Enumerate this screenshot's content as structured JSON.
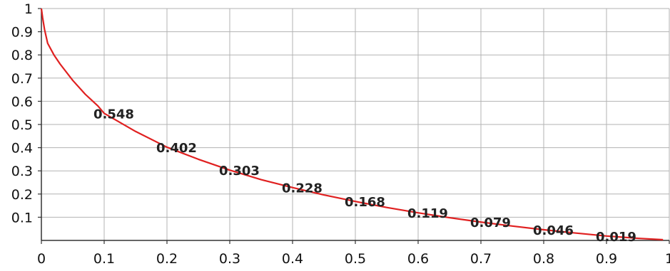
{
  "chart_data": {
    "type": "line",
    "title": "",
    "xlabel": "",
    "ylabel": "",
    "xlim": [
      0,
      1
    ],
    "ylim": [
      0,
      1
    ],
    "grid": true,
    "x_ticks": [
      {
        "value": 0,
        "label": "0"
      },
      {
        "value": 0.1,
        "label": "0.1"
      },
      {
        "value": 0.2,
        "label": "0.2"
      },
      {
        "value": 0.3,
        "label": "0.3"
      },
      {
        "value": 0.4,
        "label": "0.4"
      },
      {
        "value": 0.5,
        "label": "0.5"
      },
      {
        "value": 0.6,
        "label": "0.6"
      },
      {
        "value": 0.7,
        "label": "0.7"
      },
      {
        "value": 0.8,
        "label": "0.8"
      },
      {
        "value": 0.9,
        "label": "0.9"
      },
      {
        "value": 1,
        "label": "1"
      }
    ],
    "y_ticks": [
      {
        "value": 0.1,
        "label": "0.1"
      },
      {
        "value": 0.2,
        "label": "0.2"
      },
      {
        "value": 0.3,
        "label": "0.3"
      },
      {
        "value": 0.4,
        "label": "0.4"
      },
      {
        "value": 0.5,
        "label": "0.5"
      },
      {
        "value": 0.6,
        "label": "0.6"
      },
      {
        "value": 0.7,
        "label": "0.7"
      },
      {
        "value": 0.8,
        "label": "0.8"
      },
      {
        "value": 0.9,
        "label": "0.9"
      },
      {
        "value": 1,
        "label": "1"
      }
    ],
    "series": [
      {
        "color": "#e02020",
        "x": [
          0,
          0.002,
          0.005,
          0.01,
          0.02,
          0.03,
          0.05,
          0.07,
          0.09,
          0.1,
          0.15,
          0.2,
          0.25,
          0.3,
          0.35,
          0.4,
          0.45,
          0.5,
          0.55,
          0.6,
          0.65,
          0.7,
          0.75,
          0.8,
          0.85,
          0.9,
          0.95,
          0.99
        ],
        "y": [
          1,
          0.96,
          0.91,
          0.85,
          0.8,
          0.76,
          0.69,
          0.63,
          0.58,
          0.548,
          0.47,
          0.402,
          0.35,
          0.303,
          0.262,
          0.228,
          0.196,
          0.168,
          0.142,
          0.119,
          0.098,
          0.079,
          0.062,
          0.046,
          0.032,
          0.019,
          0.009,
          0.003
        ]
      }
    ],
    "data_labels": [
      {
        "x": 0.1,
        "y": 0.548,
        "text": "0.548"
      },
      {
        "x": 0.2,
        "y": 0.402,
        "text": "0.402"
      },
      {
        "x": 0.3,
        "y": 0.303,
        "text": "0.303"
      },
      {
        "x": 0.4,
        "y": 0.228,
        "text": "0.228"
      },
      {
        "x": 0.5,
        "y": 0.168,
        "text": "0.168"
      },
      {
        "x": 0.6,
        "y": 0.119,
        "text": "0.119"
      },
      {
        "x": 0.7,
        "y": 0.079,
        "text": "0.079"
      },
      {
        "x": 0.8,
        "y": 0.046,
        "text": "0.046"
      },
      {
        "x": 0.9,
        "y": 0.019,
        "text": "0.019"
      }
    ]
  }
}
